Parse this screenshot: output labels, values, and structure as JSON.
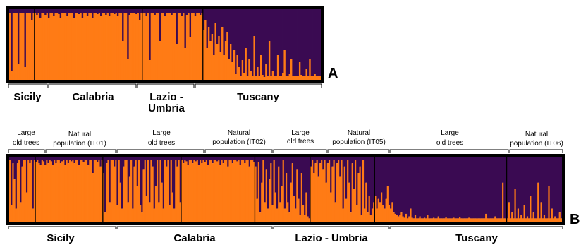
{
  "chart_data": [
    {
      "type": "bar",
      "stacked": true,
      "panel_label": "A",
      "colors": {
        "cluster1": "#FF7B15",
        "cluster2": "#3A0A52"
      },
      "groups": [
        {
          "name": "Sicily",
          "values": [
            0.95,
            0.12,
            0.95,
            0.95,
            0.95,
            0.22,
            0.95,
            0.95,
            0.95,
            0.18,
            0.95,
            0.95,
            0.95,
            0.85,
            0.95
          ]
        },
        {
          "name": "Calabria",
          "values": [
            0.95,
            0.92,
            0.95,
            0.87,
            0.95,
            0.95,
            0.92,
            0.95,
            0.88,
            0.95,
            0.95,
            0.9,
            0.95,
            0.95,
            0.93,
            0.87,
            0.95,
            0.95,
            0.95,
            0.9,
            0.95,
            0.95,
            0.94,
            0.87,
            0.95,
            0.95,
            0.93,
            0.95,
            0.88,
            0.95,
            0.95,
            0.9,
            0.95,
            0.95,
            0.87,
            0.95,
            0.95,
            0.93,
            0.95,
            0.9,
            0.95,
            0.95,
            0.92,
            0.95,
            0.9,
            0.95,
            0.95,
            0.93,
            0.95,
            0.9,
            0.95,
            0.95,
            0.55,
            0.95,
            0.95,
            0.3,
            0.92,
            0.95,
            0.95,
            0.95,
            0.93,
            0.95,
            0.85,
            0.95
          ]
        },
        {
          "name": "Lazio - Umbria",
          "values": [
            0.95,
            0.95,
            0.9,
            0.95,
            0.28,
            0.95,
            0.95,
            0.92,
            0.95,
            0.95,
            0.55,
            0.95,
            0.95,
            0.9,
            0.95,
            0.95,
            0.95,
            0.92,
            0.95,
            0.95,
            0.5,
            0.95,
            0.95,
            0.9,
            0.95,
            0.45,
            0.92,
            0.95,
            0.6,
            0.95,
            0.95,
            0.9,
            0.95,
            0.95,
            0.92,
            0.95
          ]
        },
        {
          "name": "Tuscany",
          "values": [
            0.7,
            0.85,
            0.45,
            0.75,
            0.55,
            0.65,
            0.35,
            0.8,
            0.5,
            0.62,
            0.4,
            0.75,
            0.35,
            0.55,
            0.68,
            0.3,
            0.5,
            0.25,
            0.42,
            0.08,
            0.35,
            0.18,
            0.06,
            0.28,
            0.1,
            0.45,
            0.05,
            0.3,
            0.12,
            0.05,
            0.62,
            0.06,
            0.18,
            0.05,
            0.35,
            0.07,
            0.04,
            0.22,
            0.05,
            0.55,
            0.06,
            0.12,
            0.05,
            0.05,
            0.35,
            0.06,
            0.05,
            0.1,
            0.42,
            0.05,
            0.05,
            0.08,
            0.3,
            0.05,
            0.05,
            0.06,
            0.05,
            0.25,
            0.07,
            0.05,
            0.05,
            0.15,
            0.05,
            0.3,
            0.05,
            0.05,
            0.08,
            0.05,
            0.05,
            0.05
          ]
        }
      ]
    },
    {
      "type": "bar",
      "stacked": true,
      "panel_label": "B",
      "colors": {
        "cluster1": "#FF7B15",
        "cluster2": "#3A0A52"
      },
      "groups": [
        {
          "name": "Large old trees",
          "region": "Sicily",
          "values": [
            0.95,
            0.25,
            0.9,
            0.65,
            0.2,
            0.9,
            0.95,
            0.3,
            0.85,
            0.95,
            0.95,
            0.45,
            0.95,
            0.9,
            0.95,
            0.2,
            0.95
          ]
        },
        {
          "name": "Natural population (IT01)",
          "region": "Sicily",
          "values": [
            0.92,
            0.95,
            0.9,
            0.87,
            0.95,
            0.93,
            0.87,
            0.95,
            0.9,
            0.95,
            0.93,
            0.87,
            0.95,
            0.9,
            0.95,
            0.95,
            0.9,
            0.93,
            0.95,
            0.87,
            0.95,
            0.9,
            0.95,
            0.93,
            0.95,
            0.9,
            0.95,
            0.95,
            0.88,
            0.95,
            0.95,
            0.92,
            0.95,
            0.95,
            0.87,
            0.95,
            0.95,
            0.75,
            0.95,
            0.95,
            0.92,
            0.95,
            0.85,
            0.95
          ]
        },
        {
          "name": "Large old trees",
          "region": "Calabria",
          "values": [
            0.75,
            0.15,
            0.9,
            0.95,
            0.3,
            0.95,
            0.95,
            0.85,
            0.95,
            0.25,
            0.95,
            0.6,
            0.2,
            0.85,
            0.95,
            0.95,
            0.3,
            0.7,
            0.95,
            0.2,
            0.85,
            0.95,
            0.55,
            0.95,
            0.25,
            0.15,
            0.8,
            0.95,
            0.4,
            0.95,
            0.3,
            0.95,
            0.85,
            0.2,
            0.55,
            0.95,
            0.3,
            0.95,
            0.6,
            0.2,
            0.95,
            0.85,
            0.95,
            0.25,
            0.95,
            0.45,
            0.2,
            0.95,
            0.85,
            0.95,
            0.3
          ]
        },
        {
          "name": "Natural population (IT02)",
          "region": "Calabria",
          "values": [
            0.95,
            0.9,
            0.95,
            0.93,
            0.87,
            0.95,
            0.95,
            0.9,
            0.95,
            0.93,
            0.95,
            0.88,
            0.95,
            0.9,
            0.95,
            0.92,
            0.95,
            0.87,
            0.95,
            0.95,
            0.9,
            0.95,
            0.95,
            0.93,
            0.95,
            0.87,
            0.95,
            0.9,
            0.95,
            0.95,
            0.85,
            0.95,
            0.95,
            0.9,
            0.95,
            0.95,
            0.93,
            0.95,
            0.88,
            0.95,
            0.95,
            0.9,
            0.95,
            0.95,
            0.85,
            0.95,
            0.95,
            0.92
          ]
        },
        {
          "name": "Large old trees",
          "region": "Lazio - Umbria",
          "values": [
            0.85,
            0.35,
            0.92,
            0.15,
            0.6,
            0.95,
            0.3,
            0.8,
            0.2,
            0.65,
            0.9,
            0.25,
            0.95,
            0.45,
            0.2,
            0.85,
            0.3,
            0.55,
            0.95,
            0.2,
            0.75,
            0.3,
            0.15,
            0.6,
            0.9,
            0.4,
            0.2,
            0.8,
            0.35,
            0.1,
            0.75,
            0.25,
            0.1,
            0.45,
            0.08,
            0.05
          ]
        },
        {
          "name": "Natural population (IT05)",
          "region": "Lazio - Umbria",
          "values": [
            0.85,
            0.95,
            0.75,
            0.9,
            0.95,
            0.7,
            0.9,
            0.95,
            0.8,
            0.95,
            0.6,
            0.9,
            0.95,
            0.45,
            0.85,
            0.95,
            0.3,
            0.9,
            0.95,
            0.7,
            0.95,
            0.2,
            0.85,
            0.35,
            0.95,
            0.6,
            0.15,
            0.9,
            0.5,
            0.95,
            0.25,
            0.75,
            0.85,
            0.1,
            0.95,
            0.2,
            0.6,
            0.15,
            0.4,
            0.1,
            0.2,
            0.3
          ]
        },
        {
          "name": "Large old trees",
          "region": "Tuscany",
          "values": [
            0.4,
            0.2,
            0.35,
            0.3,
            0.45,
            0.25,
            0.2,
            0.35,
            0.55,
            0.25,
            0.2,
            0.3,
            0.15,
            0.12,
            0.1,
            0.08,
            0.1,
            0.15,
            0.08,
            0.06,
            0.12,
            0.05,
            0.08,
            0.2,
            0.06,
            0.05,
            0.1,
            0.05,
            0.05,
            0.08,
            0.05,
            0.05,
            0.06,
            0.05,
            0.1,
            0.05,
            0.05,
            0.05,
            0.06,
            0.05,
            0.05,
            0.08,
            0.05,
            0.05,
            0.05,
            0.05,
            0.07,
            0.05,
            0.05,
            0.05,
            0.05,
            0.06,
            0.05,
            0.05,
            0.05,
            0.07,
            0.05,
            0.05,
            0.05,
            0.05,
            0.05,
            0.06,
            0.05,
            0.05,
            0.05,
            0.05,
            0.05,
            0.05,
            0.05,
            0.05,
            0.05,
            0.05,
            0.12,
            0.05,
            0.05,
            0.05,
            0.05,
            0.05,
            0.08,
            0.05,
            0.05,
            0.05,
            0.05,
            0.6,
            0.05,
            0.05
          ]
        },
        {
          "name": "Natural population (IT06)",
          "region": "Tuscany",
          "values": [
            0.05,
            0.3,
            0.05,
            0.15,
            0.05,
            0.5,
            0.05,
            0.2,
            0.05,
            0.1,
            0.05,
            0.25,
            0.05,
            0.08,
            0.05,
            0.4,
            0.05,
            0.15,
            0.05,
            0.05,
            0.6,
            0.05,
            0.3,
            0.05,
            0.1,
            0.05,
            0.05,
            0.55,
            0.05,
            0.2,
            0.05,
            0.08,
            0.05,
            0.05,
            0.15,
            0.05
          ]
        }
      ]
    }
  ],
  "panelA": {
    "letter": "A",
    "regions": [
      {
        "key": "sicily",
        "label": "Sicily"
      },
      {
        "key": "calabria",
        "label": "Calabria"
      },
      {
        "key": "lazio",
        "line1": "Lazio -",
        "line2": "Umbria"
      },
      {
        "key": "tuscany",
        "label": "Tuscany"
      }
    ]
  },
  "panelB": {
    "letter": "B",
    "subgroups": [
      {
        "line1": "Large",
        "line2": "old trees"
      },
      {
        "line1": "Natural",
        "line2": "population (IT01)"
      },
      {
        "line1": "Large",
        "line2": "old trees"
      },
      {
        "line1": "Natural",
        "line2": "population (IT02)"
      },
      {
        "line1": "Large",
        "line2": "old trees"
      },
      {
        "line1": "Natural",
        "line2": "population (IT05)"
      },
      {
        "line1": "Large",
        "line2": "old trees"
      },
      {
        "line1": "Natural",
        "line2": "population (IT06)"
      }
    ],
    "regions": [
      {
        "label": "Sicily"
      },
      {
        "label": "Calabria"
      },
      {
        "label": "Lazio - Umbria"
      },
      {
        "label": "Tuscany"
      }
    ]
  }
}
